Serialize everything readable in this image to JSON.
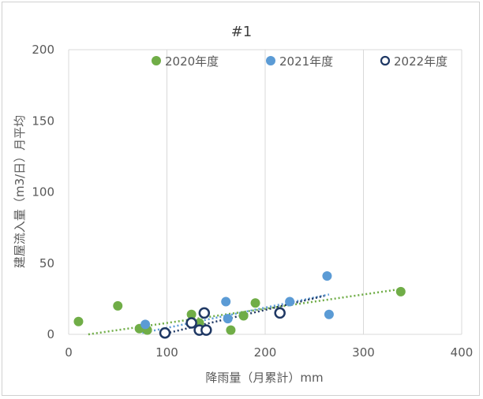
{
  "chart_data": {
    "type": "scatter",
    "title": "#1",
    "xlabel": "降雨量（月累計）mm",
    "ylabel": "建屋流入量（m3/日）月平均",
    "xlim": [
      0,
      400
    ],
    "ylim": [
      0,
      200
    ],
    "xticks": [
      0,
      100,
      200,
      300,
      400
    ],
    "yticks": [
      0,
      50,
      100,
      150,
      200
    ],
    "grid": "vertical",
    "legend_position": "top",
    "series": [
      {
        "name": "2020年度",
        "color": "#70ad47",
        "marker": "filled-circle",
        "points": [
          [
            10,
            9
          ],
          [
            50,
            20
          ],
          [
            72,
            4
          ],
          [
            80,
            3
          ],
          [
            125,
            14
          ],
          [
            133,
            8
          ],
          [
            165,
            3
          ],
          [
            178,
            13
          ],
          [
            190,
            22
          ],
          [
            338,
            30
          ]
        ],
        "trendline": {
          "x": [
            20,
            340
          ],
          "y": [
            0,
            32
          ]
        }
      },
      {
        "name": "2021年度",
        "color": "#5b9bd5",
        "marker": "filled-circle",
        "points": [
          [
            78,
            7
          ],
          [
            160,
            23
          ],
          [
            162,
            11
          ],
          [
            225,
            23
          ],
          [
            263,
            41
          ],
          [
            265,
            14
          ]
        ],
        "trendline": {
          "x": [
            75,
            265
          ],
          "y": [
            1,
            28
          ]
        }
      },
      {
        "name": "2022年度",
        "color": "#1f3864",
        "marker": "hollow-circle",
        "points": [
          [
            98,
            1
          ],
          [
            125,
            8
          ],
          [
            133,
            3
          ],
          [
            138,
            15
          ],
          [
            140,
            3
          ],
          [
            215,
            15
          ]
        ],
        "trendline": {
          "x": [
            95,
            260
          ],
          "y": [
            0,
            27
          ]
        }
      }
    ]
  }
}
